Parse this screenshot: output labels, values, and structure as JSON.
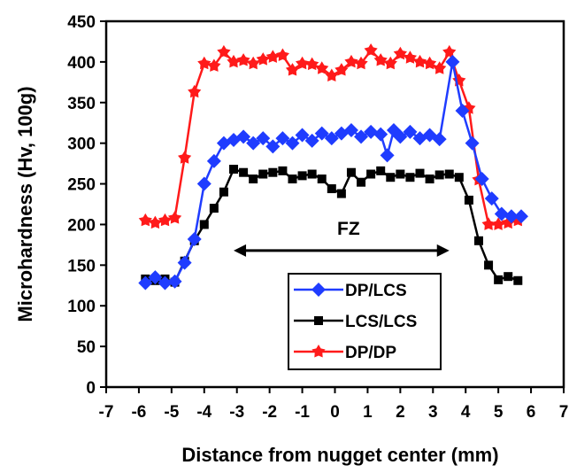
{
  "chart_data": {
    "type": "line",
    "xlabel": "Distance from nugget center (mm)",
    "ylabel": "Microhardness (Hv, 100g)",
    "xlim": [
      -7,
      7
    ],
    "ylim": [
      0,
      450
    ],
    "xticks": [
      "-7",
      "-6",
      "-5",
      "-4",
      "-3",
      "-2",
      "-1",
      "0",
      "1",
      "2",
      "3",
      "4",
      "5",
      "6",
      "7"
    ],
    "yticks": [
      "0",
      "50",
      "100",
      "150",
      "200",
      "250",
      "300",
      "350",
      "400",
      "450"
    ],
    "grid": false,
    "legend_position": "bottom-center",
    "annotation": {
      "text": "FZ",
      "from_x": -3.1,
      "to_x": 3.5,
      "y": 168
    },
    "series": [
      {
        "name": "DP/LCS",
        "color": "#1f3cff",
        "marker": "diamond",
        "x": [
          -5.8,
          -5.5,
          -5.2,
          -4.9,
          -4.6,
          -4.3,
          -4.0,
          -3.7,
          -3.4,
          -3.1,
          -2.8,
          -2.5,
          -2.2,
          -1.9,
          -1.6,
          -1.3,
          -1.0,
          -0.7,
          -0.4,
          -0.1,
          0.2,
          0.5,
          0.8,
          1.1,
          1.4,
          1.6,
          1.8,
          2.0,
          2.3,
          2.6,
          2.9,
          3.2,
          3.6,
          3.9,
          4.2,
          4.5,
          4.8,
          5.1,
          5.4,
          5.7
        ],
        "y": [
          128,
          135,
          128,
          130,
          153,
          182,
          250,
          278,
          300,
          304,
          308,
          300,
          306,
          296,
          306,
          300,
          310,
          303,
          312,
          306,
          312,
          316,
          308,
          314,
          311,
          285,
          316,
          308,
          314,
          306,
          310,
          305,
          400,
          340,
          300,
          256,
          232,
          213,
          210,
          210
        ]
      },
      {
        "name": "LCS/LCS",
        "color": "#000000",
        "marker": "square",
        "x": [
          -5.8,
          -5.5,
          -5.2,
          -4.9,
          -4.6,
          -4.3,
          -4.0,
          -3.7,
          -3.4,
          -3.1,
          -2.8,
          -2.5,
          -2.2,
          -1.9,
          -1.6,
          -1.3,
          -1.0,
          -0.7,
          -0.4,
          -0.1,
          0.2,
          0.5,
          0.8,
          1.1,
          1.4,
          1.7,
          2.0,
          2.3,
          2.6,
          2.9,
          3.2,
          3.5,
          3.8,
          4.1,
          4.4,
          4.7,
          5.0,
          5.3,
          5.6
        ],
        "y": [
          133,
          131,
          133,
          129,
          155,
          180,
          200,
          220,
          240,
          268,
          264,
          256,
          262,
          264,
          266,
          256,
          260,
          262,
          256,
          244,
          238,
          264,
          252,
          262,
          266,
          258,
          262,
          258,
          263,
          256,
          261,
          262,
          258,
          230,
          180,
          150,
          132,
          136,
          131
        ]
      },
      {
        "name": "DP/DP",
        "color": "#ff1a1a",
        "marker": "star",
        "x": [
          -5.8,
          -5.5,
          -5.2,
          -4.9,
          -4.6,
          -4.3,
          -4.0,
          -3.7,
          -3.4,
          -3.1,
          -2.8,
          -2.5,
          -2.2,
          -1.9,
          -1.6,
          -1.3,
          -1.0,
          -0.7,
          -0.4,
          -0.1,
          0.2,
          0.5,
          0.8,
          1.1,
          1.4,
          1.7,
          2.0,
          2.3,
          2.6,
          2.9,
          3.2,
          3.5,
          3.8,
          4.1,
          4.4,
          4.7,
          5.0,
          5.3,
          5.6
        ],
        "y": [
          205,
          202,
          205,
          208,
          282,
          363,
          398,
          395,
          412,
          400,
          402,
          398,
          403,
          406,
          408,
          390,
          398,
          397,
          392,
          383,
          390,
          400,
          398,
          414,
          402,
          398,
          410,
          405,
          400,
          398,
          392,
          412,
          377,
          343,
          255,
          200,
          200,
          202,
          205
        ]
      }
    ]
  }
}
